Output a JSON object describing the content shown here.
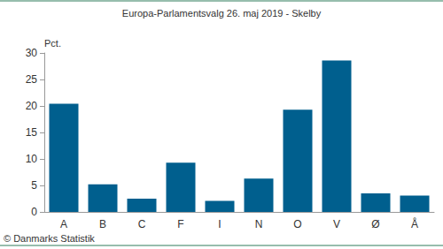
{
  "chart_data": {
    "type": "bar",
    "title": "Europa-Parlamentsvalg 26. maj 2019 - Skelby",
    "y_label": "Pct.",
    "source": "© Danmarks Statistik",
    "categories": [
      "A",
      "B",
      "C",
      "F",
      "I",
      "N",
      "O",
      "V",
      "Ø",
      "Å"
    ],
    "values": [
      20.4,
      5.2,
      2.5,
      9.3,
      2.1,
      6.3,
      19.3,
      28.6,
      3.5,
      3.1
    ],
    "color": "#005f8e",
    "ylim": [
      0,
      30
    ],
    "yticks": [
      0,
      5,
      10,
      15,
      20,
      25,
      30
    ],
    "grid": false
  }
}
